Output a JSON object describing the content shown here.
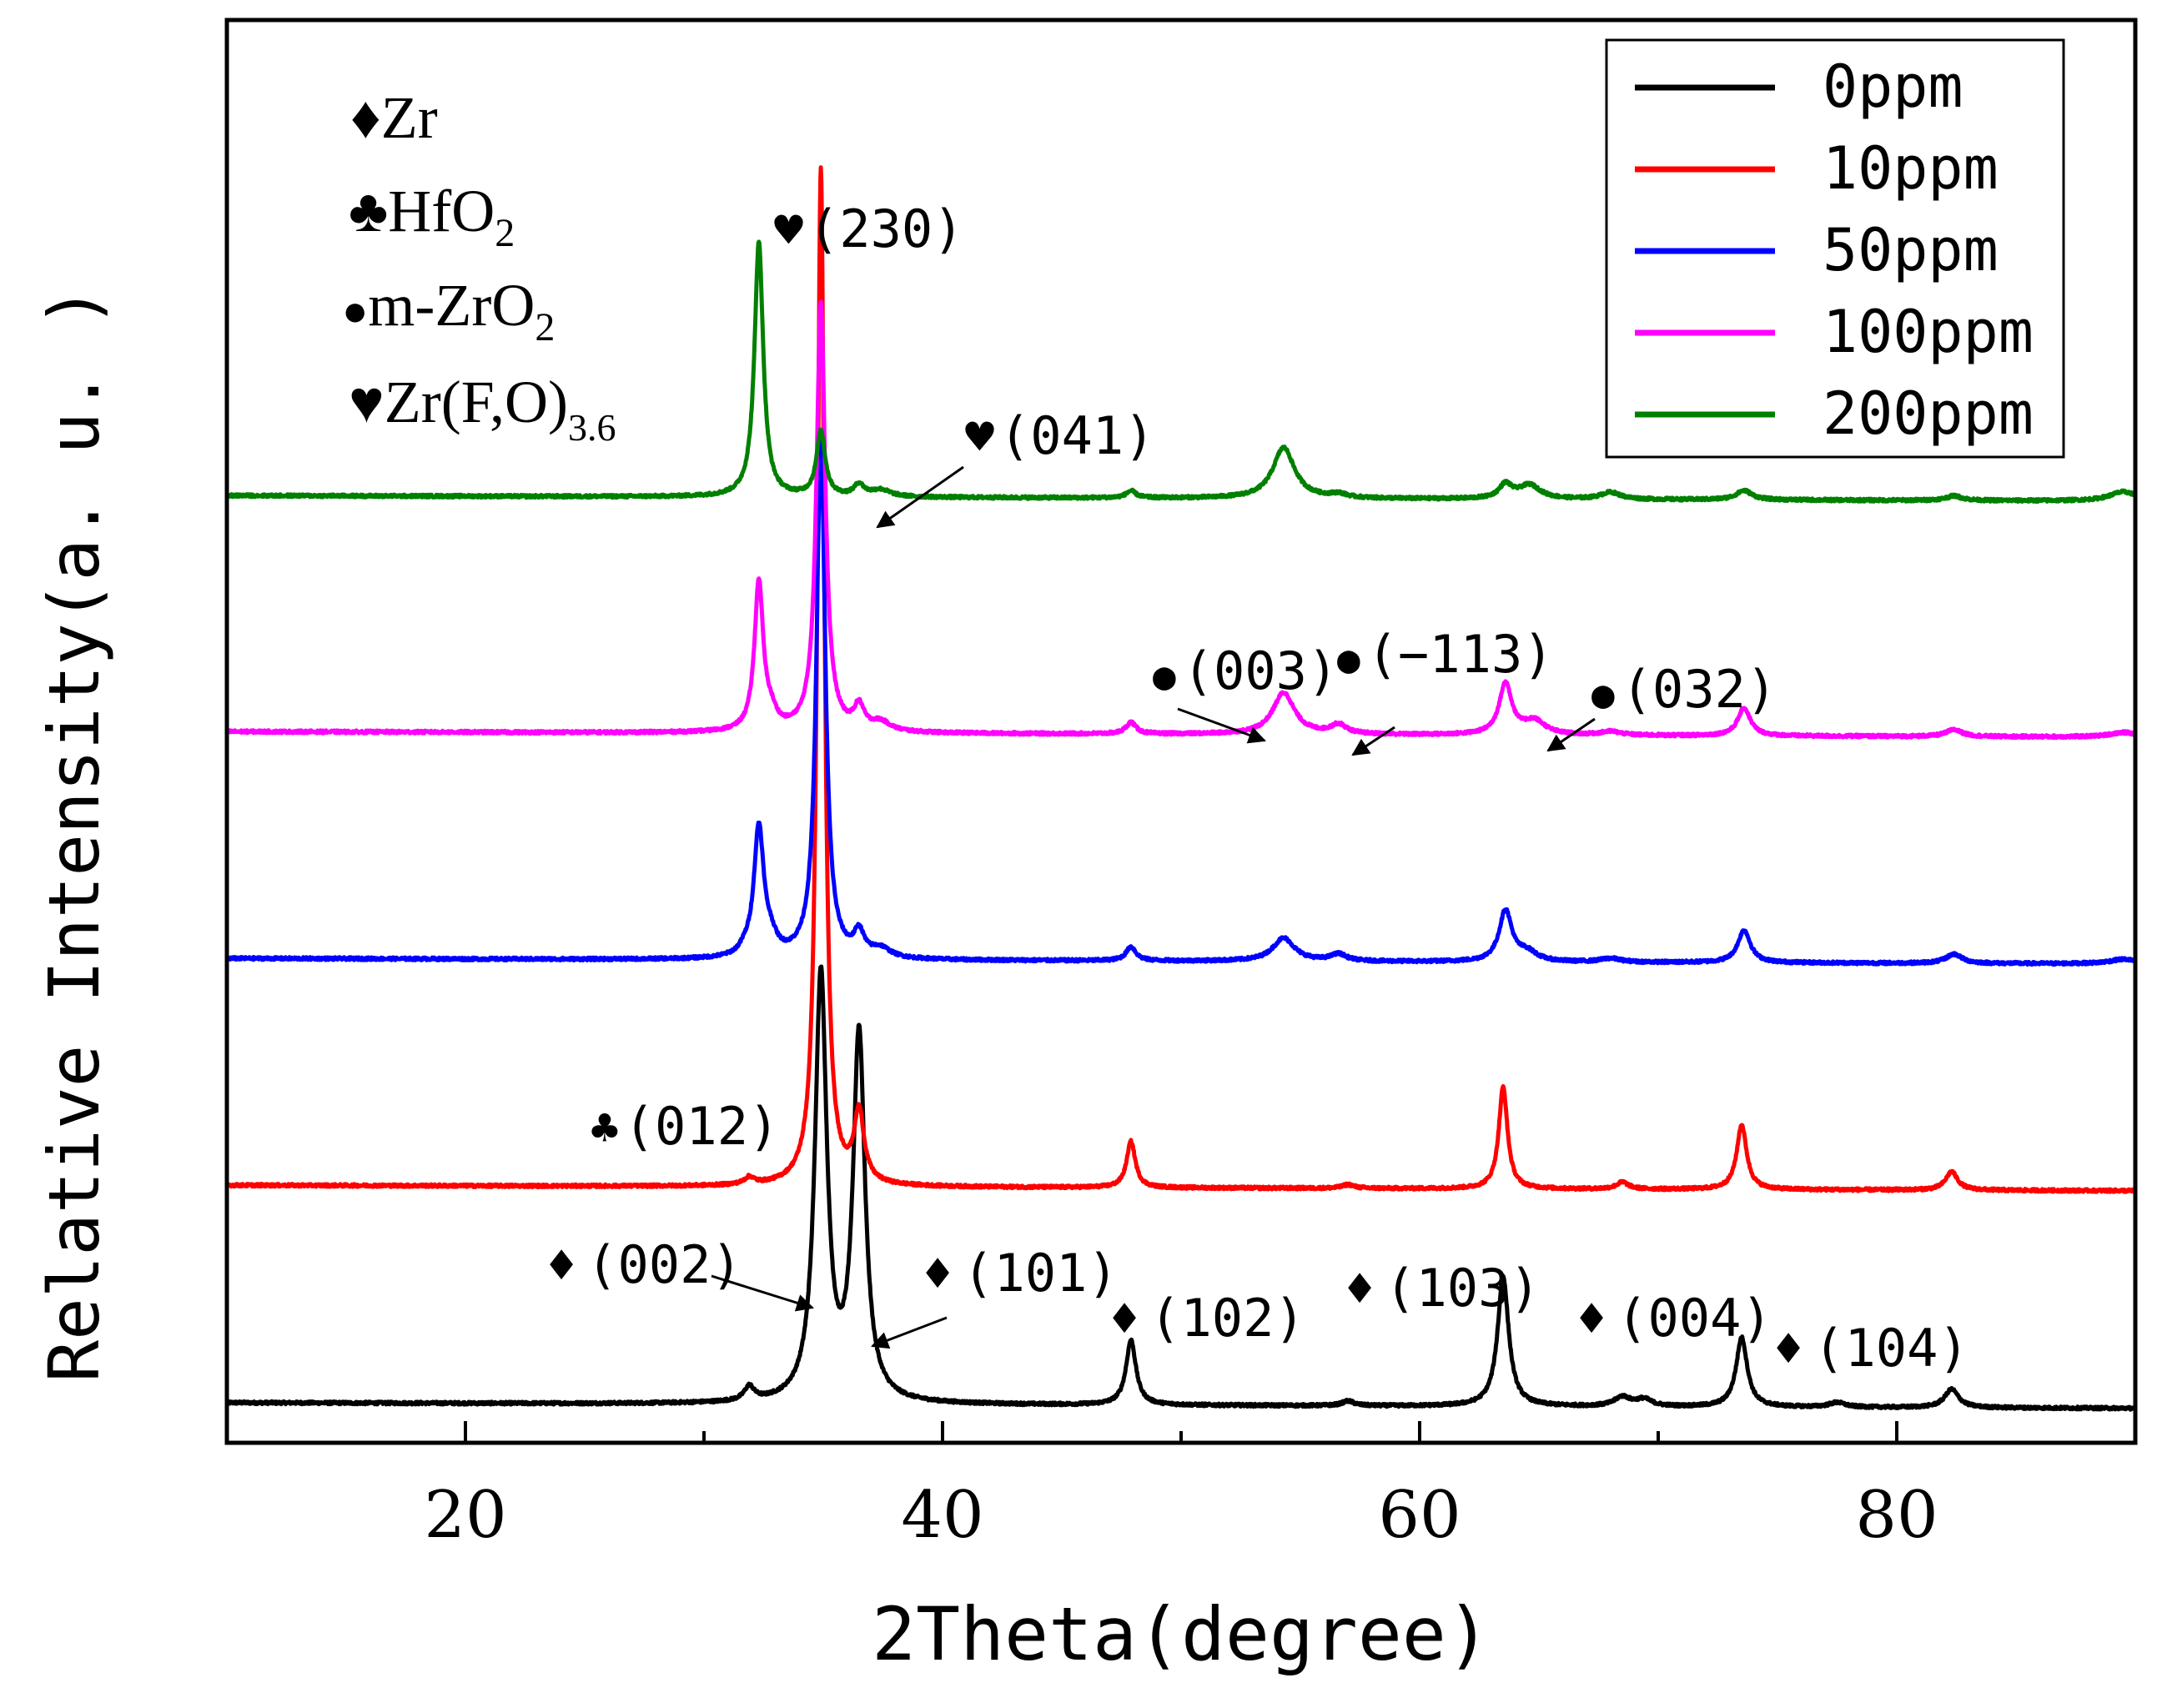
{
  "chart_data": {
    "type": "line",
    "xlabel": "2Theta(degree)",
    "ylabel": "Relative Intensity(a. u. )",
    "xlim": [
      10,
      90
    ],
    "xticks": [
      20,
      40,
      60,
      80
    ],
    "xtick_labels": [
      "20",
      "40",
      "60",
      "80"
    ],
    "legend_position": "top-right",
    "series": [
      {
        "name": "0ppm",
        "color": "#000000",
        "offset": 0.0,
        "peaks": [
          [
            31.9,
            0.03,
            0.25
          ],
          [
            34.9,
            0.92,
            0.3
          ],
          [
            36.5,
            0.79,
            0.3
          ],
          [
            47.9,
            0.14,
            0.25
          ],
          [
            57.0,
            0.01,
            0.3
          ],
          [
            63.5,
            0.28,
            0.28
          ],
          [
            68.5,
            0.02,
            0.4
          ],
          [
            69.4,
            0.015,
            0.4
          ],
          [
            73.5,
            0.15,
            0.28
          ],
          [
            77.5,
            0.01,
            0.4
          ],
          [
            82.3,
            0.04,
            0.35
          ]
        ]
      },
      {
        "name": "10ppm",
        "color": "#ff0000",
        "offset": 0.47,
        "peaks": [
          [
            31.9,
            0.015,
            0.25
          ],
          [
            34.9,
            2.2,
            0.18
          ],
          [
            36.5,
            0.15,
            0.25
          ],
          [
            47.9,
            0.1,
            0.22
          ],
          [
            57.0,
            0.008,
            0.3
          ],
          [
            63.5,
            0.22,
            0.22
          ],
          [
            68.5,
            0.015,
            0.3
          ],
          [
            73.5,
            0.14,
            0.25
          ],
          [
            82.3,
            0.04,
            0.3
          ]
        ]
      },
      {
        "name": "50ppm",
        "color": "#0000ff",
        "offset": 0.96,
        "peaks": [
          [
            31.7,
            0.01,
            0.25
          ],
          [
            32.3,
            0.28,
            0.25
          ],
          [
            32.8,
            0.03,
            0.3
          ],
          [
            34.9,
            1.13,
            0.22
          ],
          [
            36.5,
            0.05,
            0.25
          ],
          [
            37.4,
            0.02,
            0.5
          ],
          [
            47.9,
            0.03,
            0.25
          ],
          [
            54.3,
            0.05,
            0.55
          ],
          [
            56.6,
            0.015,
            0.4
          ],
          [
            63.6,
            0.11,
            0.32
          ],
          [
            64.5,
            0.02,
            0.5
          ],
          [
            68.0,
            0.008,
            0.5
          ],
          [
            73.6,
            0.07,
            0.32
          ],
          [
            82.4,
            0.02,
            0.4
          ],
          [
            89.5,
            0.01,
            0.7
          ]
        ]
      },
      {
        "name": "100ppm",
        "color": "#ff00ff",
        "offset": 1.45,
        "peaks": [
          [
            32.3,
            0.32,
            0.22
          ],
          [
            32.8,
            0.03,
            0.3
          ],
          [
            34.9,
            0.93,
            0.22
          ],
          [
            36.5,
            0.05,
            0.25
          ],
          [
            37.4,
            0.02,
            0.5
          ],
          [
            47.9,
            0.025,
            0.25
          ],
          [
            54.3,
            0.09,
            0.55
          ],
          [
            56.6,
            0.02,
            0.4
          ],
          [
            63.6,
            0.11,
            0.32
          ],
          [
            64.8,
            0.03,
            0.55
          ],
          [
            68.0,
            0.008,
            0.5
          ],
          [
            73.6,
            0.06,
            0.32
          ],
          [
            82.4,
            0.015,
            0.4
          ],
          [
            89.5,
            0.01,
            0.7
          ]
        ]
      },
      {
        "name": "200ppm",
        "color": "#008000",
        "offset": 1.96,
        "peaks": [
          [
            32.3,
            0.55,
            0.22
          ],
          [
            34.9,
            0.14,
            0.22
          ],
          [
            36.5,
            0.025,
            0.25
          ],
          [
            37.4,
            0.015,
            0.5
          ],
          [
            47.9,
            0.015,
            0.25
          ],
          [
            54.3,
            0.11,
            0.55
          ],
          [
            56.6,
            0.008,
            0.4
          ],
          [
            63.6,
            0.03,
            0.32
          ],
          [
            64.6,
            0.03,
            0.55
          ],
          [
            68.0,
            0.015,
            0.5
          ],
          [
            73.6,
            0.02,
            0.4
          ],
          [
            82.4,
            0.01,
            0.4
          ],
          [
            89.5,
            0.02,
            0.7
          ]
        ]
      }
    ],
    "phase_legend": [
      {
        "symbol": "♦",
        "formula": "Zr",
        "subscript": ""
      },
      {
        "symbol": "♣",
        "formula": "HfO",
        "subscript": "2"
      },
      {
        "symbol": "●",
        "formula": "m-ZrO",
        "subscript": "2"
      },
      {
        "symbol": "♥",
        "formula": "Zr(F,O)",
        "subscript": "3.6"
      }
    ],
    "annotations": [
      {
        "id": "ann-230",
        "symbol": "♥",
        "text": "(230)"
      },
      {
        "id": "ann-041",
        "symbol": "♥",
        "text": "(041)"
      },
      {
        "id": "ann-003",
        "symbol": "●",
        "text": "(003)"
      },
      {
        "id": "ann-113",
        "symbol": "●",
        "text": "(−113)"
      },
      {
        "id": "ann-032",
        "symbol": "●",
        "text": "(032)"
      },
      {
        "id": "ann-012",
        "symbol": "♣",
        "text": "(012)"
      },
      {
        "id": "ann-002",
        "symbol": "♦",
        "text": "(002)"
      },
      {
        "id": "ann-101",
        "symbol": "♦",
        "text": "(101)"
      },
      {
        "id": "ann-102",
        "symbol": "♦",
        "text": "(102)"
      },
      {
        "id": "ann-103",
        "symbol": "♦",
        "text": "(103)"
      },
      {
        "id": "ann-004",
        "symbol": "♦",
        "text": "(004)"
      },
      {
        "id": "ann-104",
        "symbol": "♦",
        "text": "(104)"
      }
    ]
  }
}
